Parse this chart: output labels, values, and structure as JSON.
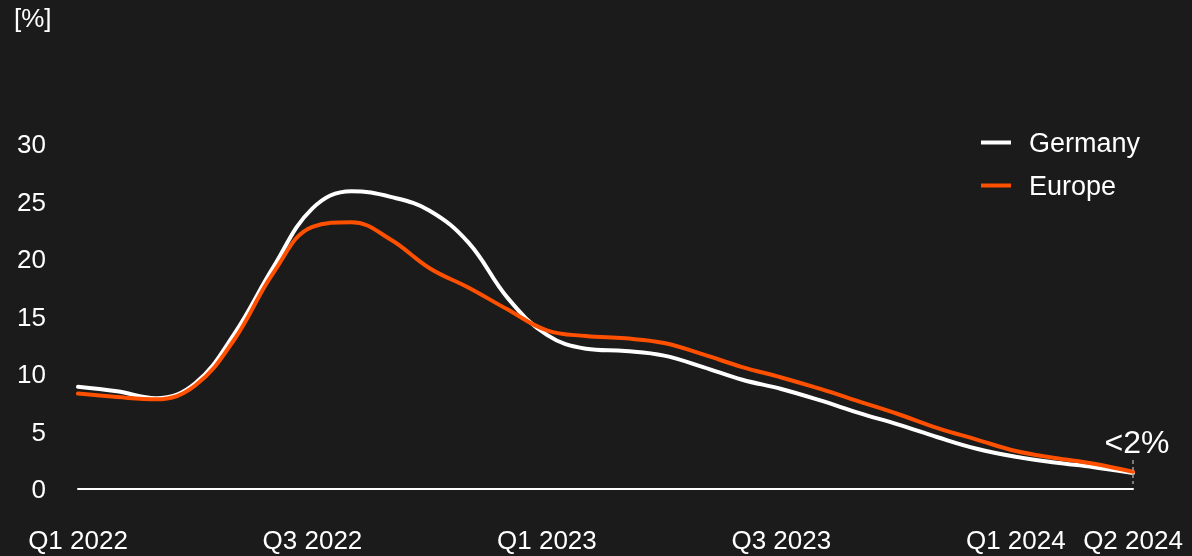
{
  "chart_data": {
    "type": "line",
    "ylabel": "[%]",
    "categories": [
      "Q1 2022",
      null,
      null,
      null,
      null,
      null,
      "Q3 2022",
      null,
      null,
      null,
      null,
      null,
      "Q1 2023",
      null,
      null,
      null,
      null,
      null,
      "Q3 2023",
      null,
      null,
      null,
      null,
      null,
      "Q1 2024",
      null,
      null,
      "Q2 2024"
    ],
    "series": [
      {
        "name": "Germany",
        "color": "#ffffff",
        "values": [
          8.9,
          8.5,
          7.9,
          9.2,
          13.5,
          19.3,
          24.4,
          25.9,
          25.4,
          24.2,
          21.4,
          16.6,
          13.4,
          12.2,
          12.0,
          11.6,
          10.6,
          9.5,
          8.7,
          7.7,
          6.6,
          5.6,
          4.5,
          3.5,
          2.8,
          2.3,
          1.9,
          1.4
        ]
      },
      {
        "name": "Europe",
        "color": "#ff5000",
        "values": [
          8.3,
          8.0,
          7.8,
          9.0,
          13.0,
          18.8,
          22.8,
          23.2,
          21.7,
          19.2,
          17.5,
          15.6,
          13.8,
          13.3,
          13.1,
          12.7,
          11.7,
          10.6,
          9.7,
          8.7,
          7.6,
          6.5,
          5.3,
          4.3,
          3.3,
          2.7,
          2.2,
          1.5
        ]
      }
    ],
    "ylim": [
      0,
      30
    ],
    "yticks": [
      0,
      5,
      10,
      15,
      20,
      25,
      30
    ],
    "annotations": [
      {
        "text": "<2%",
        "x": "Q2 2024",
        "y": 1.5
      }
    ],
    "legend": "top right",
    "marker": "none",
    "line_style": "solid"
  }
}
